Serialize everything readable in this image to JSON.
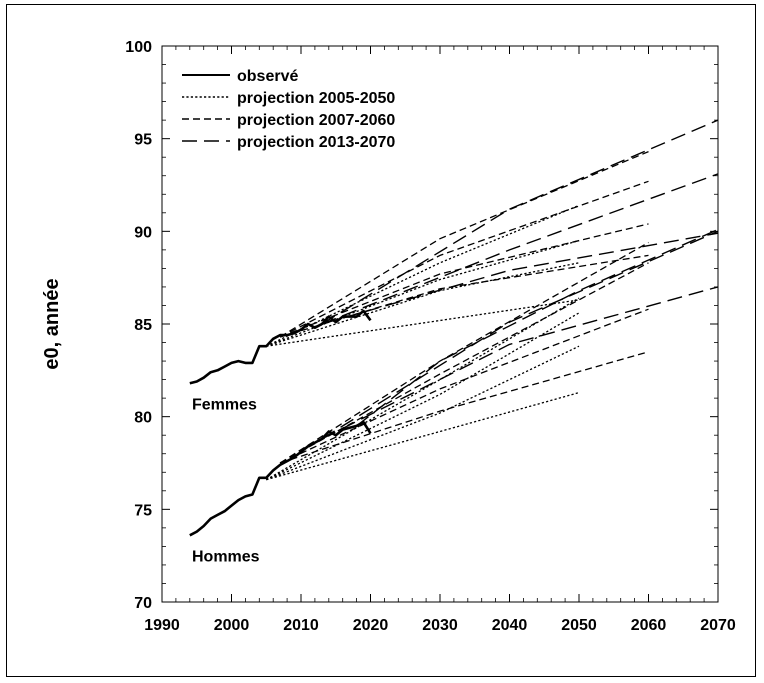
{
  "chart_data": {
    "type": "line",
    "ylabel": "e0, année",
    "xlabel": "",
    "xlim": [
      1990,
      2070
    ],
    "ylim": [
      70,
      100
    ],
    "xticks": [
      1990,
      2000,
      2010,
      2020,
      2030,
      2040,
      2050,
      2060,
      2070
    ],
    "yticks": [
      70,
      75,
      80,
      85,
      90,
      95,
      100
    ],
    "grid": false,
    "legend_position": "top-left",
    "legend": [
      {
        "label": "observé",
        "style": "solid"
      },
      {
        "label": "projection 2005-2050",
        "style": "dotted"
      },
      {
        "label": "projection 2007-2060",
        "style": "dashed"
      },
      {
        "label": "projection 2013-2070",
        "style": "longdash"
      }
    ],
    "group_labels": {
      "femmes": "Femmes",
      "hommes": "Hommes"
    },
    "series": [
      {
        "group": "Femmes",
        "style": "observed",
        "x": [
          1994,
          1995,
          1996,
          1997,
          1998,
          1999,
          2000,
          2001,
          2002,
          2003,
          2004,
          2005,
          2006,
          2007,
          2008,
          2009,
          2010,
          2011,
          2012,
          2013,
          2014,
          2015,
          2016,
          2017,
          2018,
          2019,
          2020
        ],
        "y": [
          81.8,
          81.9,
          82.1,
          82.4,
          82.5,
          82.7,
          82.9,
          83.0,
          82.9,
          82.9,
          83.8,
          83.8,
          84.2,
          84.4,
          84.4,
          84.5,
          84.7,
          85.0,
          84.8,
          85.0,
          85.4,
          85.1,
          85.4,
          85.4,
          85.4,
          85.7,
          85.2
        ]
      },
      {
        "group": "Hommes",
        "style": "observed",
        "x": [
          1994,
          1995,
          1996,
          1997,
          1998,
          1999,
          2000,
          2001,
          2002,
          2003,
          2004,
          2005,
          2006,
          2007,
          2008,
          2009,
          2010,
          2011,
          2012,
          2013,
          2014,
          2015,
          2016,
          2017,
          2018,
          2019,
          2020
        ],
        "y": [
          73.6,
          73.8,
          74.1,
          74.5,
          74.7,
          74.9,
          75.2,
          75.5,
          75.7,
          75.8,
          76.7,
          76.7,
          77.1,
          77.4,
          77.6,
          77.8,
          78.1,
          78.4,
          78.6,
          78.8,
          79.2,
          79.0,
          79.3,
          79.4,
          79.5,
          79.7,
          79.1
        ]
      },
      {
        "group": "Femmes",
        "style": "dotted",
        "x": [
          2005,
          2050
        ],
        "y": [
          83.8,
          86.3
        ]
      },
      {
        "group": "Femmes",
        "style": "dotted",
        "x": [
          2005,
          2030,
          2050
        ],
        "y": [
          83.8,
          86.8,
          88.3
        ]
      },
      {
        "group": "Femmes",
        "style": "dotted",
        "x": [
          2005,
          2030,
          2050
        ],
        "y": [
          83.8,
          87.4,
          89.5
        ]
      },
      {
        "group": "Femmes",
        "style": "dotted",
        "x": [
          2005,
          2030,
          2050
        ],
        "y": [
          83.8,
          88.3,
          91.4
        ]
      },
      {
        "group": "Hommes",
        "style": "dotted",
        "x": [
          2005,
          2030,
          2050
        ],
        "y": [
          76.6,
          79.2,
          81.3
        ]
      },
      {
        "group": "Hommes",
        "style": "dotted",
        "x": [
          2005,
          2030,
          2050
        ],
        "y": [
          76.6,
          80.2,
          83.8
        ]
      },
      {
        "group": "Hommes",
        "style": "dotted",
        "x": [
          2005,
          2030,
          2050
        ],
        "y": [
          76.6,
          81.2,
          85.6
        ]
      },
      {
        "group": "Hommes",
        "style": "dotted",
        "x": [
          2005,
          2030,
          2050
        ],
        "y": [
          76.6,
          82.0,
          86.4
        ]
      },
      {
        "group": "Femmes",
        "style": "dashed",
        "x": [
          2007,
          2030,
          2060
        ],
        "y": [
          84.3,
          86.9,
          88.7
        ]
      },
      {
        "group": "Femmes",
        "style": "dashed",
        "x": [
          2007,
          2030,
          2060
        ],
        "y": [
          84.3,
          87.7,
          90.4
        ]
      },
      {
        "group": "Femmes",
        "style": "dashed",
        "x": [
          2007,
          2030,
          2060
        ],
        "y": [
          84.3,
          88.7,
          92.7
        ]
      },
      {
        "group": "Femmes",
        "style": "dashed",
        "x": [
          2007,
          2030,
          2060
        ],
        "y": [
          84.3,
          89.6,
          94.3
        ]
      },
      {
        "group": "Hommes",
        "style": "dashed",
        "x": [
          2007,
          2030,
          2060
        ],
        "y": [
          77.5,
          80.3,
          83.5
        ]
      },
      {
        "group": "Hommes",
        "style": "dashed",
        "x": [
          2007,
          2030,
          2060
        ],
        "y": [
          77.5,
          81.5,
          85.8
        ]
      },
      {
        "group": "Hommes",
        "style": "dashed",
        "x": [
          2007,
          2030,
          2060
        ],
        "y": [
          77.5,
          82.3,
          88.3
        ]
      },
      {
        "group": "Hommes",
        "style": "dashed",
        "x": [
          2007,
          2030,
          2060
        ],
        "y": [
          77.5,
          83.0,
          89.4
        ]
      },
      {
        "group": "Femmes",
        "style": "longdash",
        "x": [
          2013,
          2040,
          2070
        ],
        "y": [
          85.0,
          87.9,
          89.9
        ]
      },
      {
        "group": "Femmes",
        "style": "longdash",
        "x": [
          2013,
          2040,
          2070
        ],
        "y": [
          85.0,
          89.0,
          93.1
        ]
      },
      {
        "group": "Femmes",
        "style": "longdash",
        "x": [
          2013,
          2040,
          2070
        ],
        "y": [
          85.0,
          91.2,
          96.0
        ]
      },
      {
        "group": "Hommes",
        "style": "longdash",
        "x": [
          2013,
          2040,
          2070
        ],
        "y": [
          78.8,
          83.9,
          87.0
        ]
      },
      {
        "group": "Hommes",
        "style": "longdash",
        "x": [
          2013,
          2040,
          2070
        ],
        "y": [
          78.8,
          85.1,
          90.0
        ]
      },
      {
        "group": "Hommes",
        "style": "longdash",
        "x": [
          2018,
          2030,
          2050,
          2070
        ],
        "y": [
          79.5,
          83.0,
          86.8,
          90.1
        ]
      }
    ]
  }
}
